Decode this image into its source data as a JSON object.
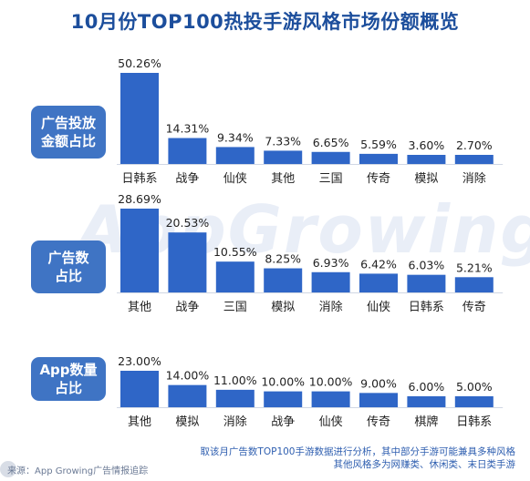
{
  "title": "10月份TOP100热投手游风格市场份额概览",
  "watermark": "AppGrowing",
  "footer": {
    "source": "来源：App Growing广告情报追踪",
    "note_line1": "取该月广告数TOP100手游数据进行分析，其中部分手游可能兼具多种风格",
    "note_line2": "其他风格多为网赚类、休闲类、末日类手游"
  },
  "colors": {
    "bar": "#2f66c7",
    "label_bg": "#3f74c4",
    "title": "#1c4e9c"
  },
  "chart_data": [
    {
      "type": "bar",
      "label": "广告投放金额占比",
      "label_lines": [
        "广告投放",
        "金额占比"
      ],
      "categories": [
        "日韩系",
        "战争",
        "仙侠",
        "其他",
        "三国",
        "传奇",
        "模拟",
        "消除"
      ],
      "values": [
        50.26,
        14.31,
        9.34,
        7.33,
        6.65,
        5.59,
        3.6,
        2.7
      ],
      "value_labels": [
        "50.26%",
        "14.31%",
        "9.34%",
        "7.33%",
        "6.65%",
        "5.59%",
        "3.60%",
        "2.70%"
      ]
    },
    {
      "type": "bar",
      "label": "广告数占比",
      "label_lines": [
        "广告数",
        "占比"
      ],
      "categories": [
        "其他",
        "战争",
        "三国",
        "模拟",
        "消除",
        "仙侠",
        "日韩系",
        "传奇"
      ],
      "values": [
        28.69,
        20.53,
        10.55,
        8.25,
        6.93,
        6.42,
        6.03,
        5.21
      ],
      "value_labels": [
        "28.69%",
        "20.53%",
        "10.55%",
        "8.25%",
        "6.93%",
        "6.42%",
        "6.03%",
        "5.21%"
      ]
    },
    {
      "type": "bar",
      "label": "App数量占比",
      "label_lines": [
        "App数量",
        "占比"
      ],
      "categories": [
        "其他",
        "模拟",
        "消除",
        "战争",
        "仙侠",
        "传奇",
        "棋牌",
        "日韩系"
      ],
      "values": [
        23.0,
        14.0,
        11.0,
        10.0,
        10.0,
        9.0,
        6.0,
        5.0
      ],
      "value_labels": [
        "23.00%",
        "14.00%",
        "11.00%",
        "10.00%",
        "10.00%",
        "9.00%",
        "6.00%",
        "5.00%"
      ]
    }
  ]
}
